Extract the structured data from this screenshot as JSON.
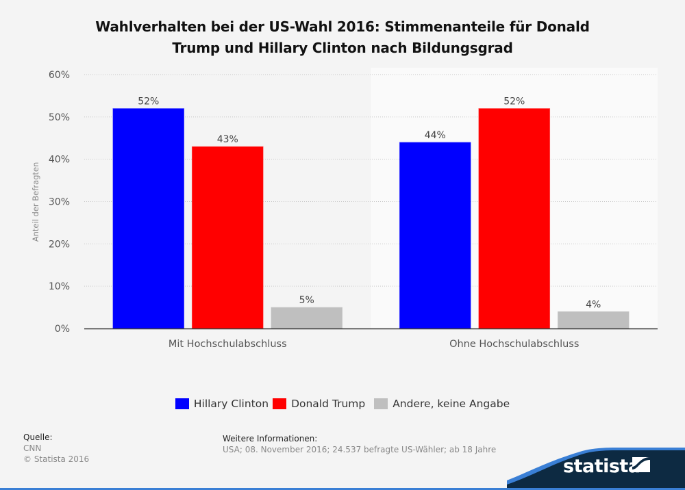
{
  "title_line1": "Wahlverhalten bei der US-Wahl 2016: Stimmenanteile für Donald",
  "title_line2": "Trump und Hillary Clinton nach Bildungsgrad",
  "chart_data": {
    "type": "bar",
    "title": "Wahlverhalten bei der US-Wahl 2016: Stimmenanteile für Donald Trump und Hillary Clinton nach Bildungsgrad",
    "xlabel": "",
    "ylabel": "Anteil der Befragten",
    "ylim": [
      0,
      60
    ],
    "yticks": [
      0,
      10,
      20,
      30,
      40,
      50,
      60
    ],
    "ytick_labels": [
      "0%",
      "10%",
      "20%",
      "30%",
      "40%",
      "50%",
      "60%"
    ],
    "grid": true,
    "legend_position": "bottom",
    "categories": [
      "Mit Hochschulabschluss",
      "Ohne Hochschulabschluss"
    ],
    "series": [
      {
        "name": "Hillary Clinton",
        "color": "#0000ff",
        "values": [
          52,
          44
        ],
        "labels": [
          "52%",
          "44%"
        ]
      },
      {
        "name": "Donald Trump",
        "color": "#ff0000",
        "values": [
          43,
          52
        ],
        "labels": [
          "43%",
          "52%"
        ]
      },
      {
        "name": "Andere, keine Angabe",
        "color": "#bfbfbf",
        "values": [
          5,
          4
        ],
        "labels": [
          "5%",
          "4%"
        ]
      }
    ]
  },
  "legend": [
    {
      "label": "Hillary Clinton",
      "color": "#0000ff"
    },
    {
      "label": "Donald Trump",
      "color": "#ff0000"
    },
    {
      "label": "Andere, keine Angabe",
      "color": "#bfbfbf"
    }
  ],
  "footer": {
    "source_heading": "Quelle:",
    "source": "CNN",
    "copyright": "© Statista 2016",
    "info_heading": "Weitere Informationen:",
    "info": "USA; 08. November 2016; 24.537 befragte US-Wähler; ab 18 Jahre"
  },
  "brand": {
    "name": "statista",
    "dark_color": "#0d2a42",
    "accent_color": "#3a7fd5"
  }
}
